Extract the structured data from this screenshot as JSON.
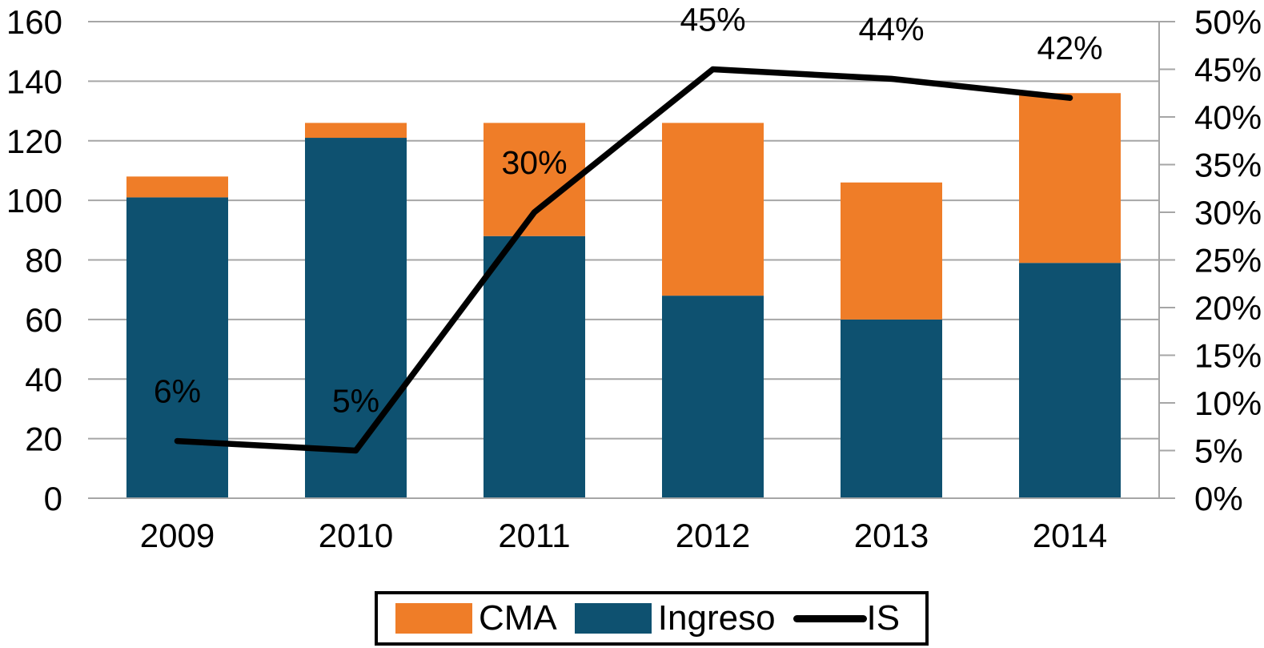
{
  "chart_data": {
    "type": "bar",
    "subtype": "stacked-column-with-line-overlay",
    "title": "",
    "categories": [
      "2009",
      "2010",
      "2011",
      "2012",
      "2013",
      "2014"
    ],
    "series": [
      {
        "name": "Ingreso",
        "type": "bar",
        "stack_order": 1,
        "color": "#0E5170",
        "values": [
          101,
          121,
          88,
          68,
          60,
          79
        ]
      },
      {
        "name": "CMA",
        "type": "bar",
        "stack_order": 2,
        "color": "#EF7D28",
        "values": [
          7,
          5,
          38,
          58,
          46,
          57
        ]
      },
      {
        "name": "IS",
        "type": "line",
        "axis": "right",
        "unit": "%",
        "color": "#000000",
        "values": [
          6,
          5,
          30,
          45,
          44,
          42
        ],
        "point_labels": [
          {
            "text": "6%",
            "color": "#FFFFFF"
          },
          {
            "text": "5%",
            "color": "#FFFFFF"
          },
          {
            "text": "30%",
            "color": "#000000"
          },
          {
            "text": "45%",
            "color": "#000000"
          },
          {
            "text": "44%",
            "color": "#000000"
          },
          {
            "text": "42%",
            "color": "#000000"
          }
        ]
      }
    ],
    "stacked_totals": [
      108,
      126,
      126,
      126,
      106,
      136
    ],
    "left_axis": {
      "min": 0,
      "max": 160,
      "step": 20,
      "tick_labels": [
        "0",
        "20",
        "40",
        "60",
        "80",
        "100",
        "120",
        "140",
        "160"
      ]
    },
    "right_axis": {
      "min": 0,
      "max": 50,
      "step": 5,
      "tick_labels": [
        "0%",
        "5%",
        "10%",
        "15%",
        "20%",
        "25%",
        "30%",
        "35%",
        "40%",
        "45%",
        "50%"
      ]
    },
    "grid": {
      "horizontal": true,
      "vertical": false,
      "color": "#A6A6A6"
    },
    "legend": {
      "position": "bottom",
      "items": [
        {
          "label": "CMA",
          "marker": "rect",
          "color": "#EF7D28"
        },
        {
          "label": "Ingreso",
          "marker": "rect",
          "color": "#0E5170"
        },
        {
          "label": "IS",
          "marker": "line",
          "color": "#000000"
        }
      ]
    }
  },
  "colors": {
    "background": "#FFFFFF",
    "grid": "#A6A6A6",
    "axis_text": "#000000",
    "bar_orange": "#EF7D28",
    "bar_blue": "#0E5170",
    "line_black": "#000000"
  }
}
